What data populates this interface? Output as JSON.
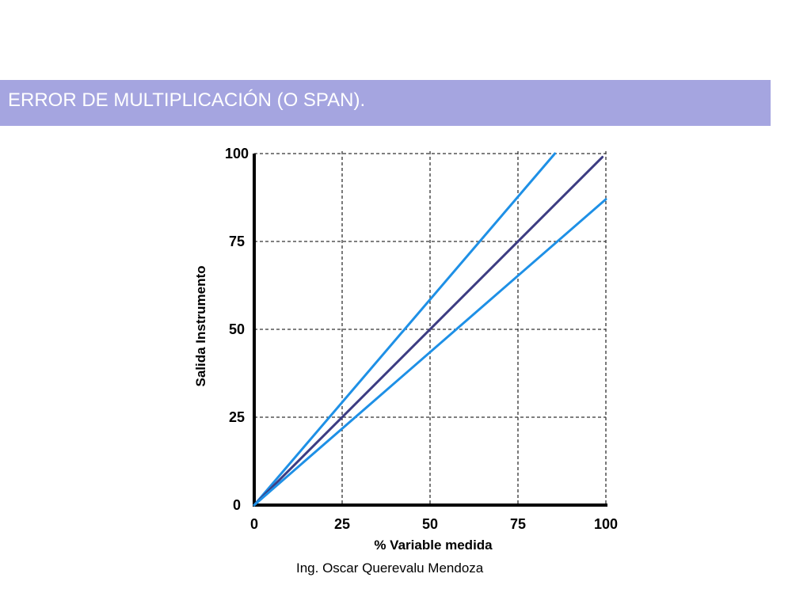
{
  "slide": {
    "title": "ERROR DE MULTIPLICACIÓN (O SPAN).",
    "credit": "Ing. Oscar Querevalu Mendoza",
    "title_bar_color": "#a5a5e0",
    "title_text_color": "#ffffff"
  },
  "chart_data": {
    "type": "line",
    "title": "",
    "xlabel": "% Variable medida",
    "ylabel": "Salida Instrumento",
    "xlim": [
      0,
      100
    ],
    "ylim": [
      0,
      100
    ],
    "x_ticks": [
      0,
      25,
      50,
      75,
      100
    ],
    "y_ticks": [
      0,
      25,
      50,
      75,
      100
    ],
    "grid": "dashed",
    "series": [
      {
        "color": "#1e90e6",
        "points": [
          [
            0,
            0
          ],
          [
            85.5,
            100
          ]
        ]
      },
      {
        "color": "#3c3c82",
        "points": [
          [
            0,
            0
          ],
          [
            99,
            99
          ]
        ]
      },
      {
        "color": "#1e90e6",
        "points": [
          [
            0,
            0
          ],
          [
            100,
            87
          ]
        ]
      }
    ]
  }
}
